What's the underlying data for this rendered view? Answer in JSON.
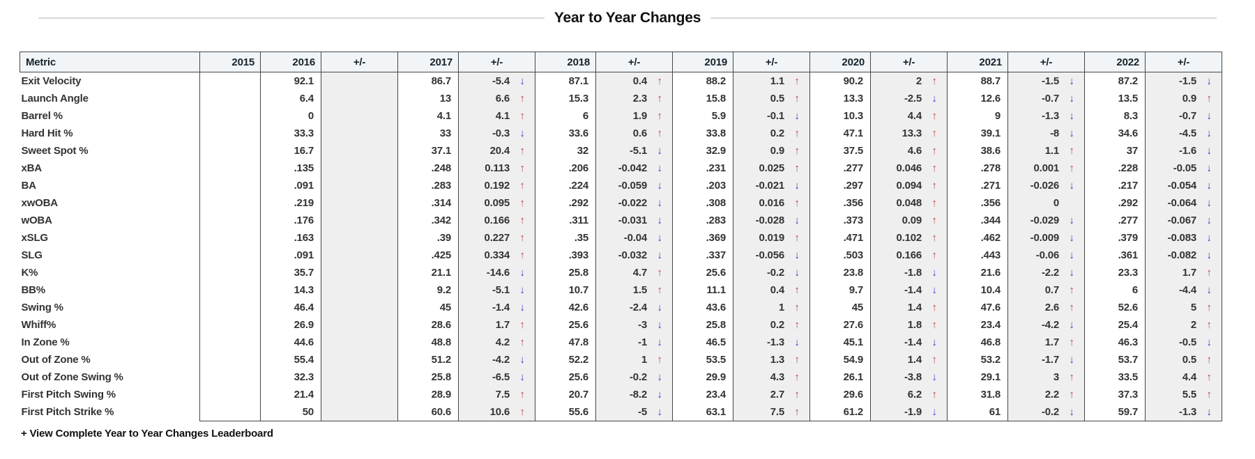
{
  "title": "Year to Year Changes",
  "footer": {
    "link_label": "+ View Complete Year to Year Changes Leaderboard"
  },
  "icons": {
    "up_arrow": "↑",
    "down_arrow": "↓"
  },
  "colors": {
    "up_arrow": "#bb4444",
    "down_arrow": "#3a3acd",
    "pm_column_bg": "#efefef",
    "header_bg": "#f2f5f8",
    "border": "#454545"
  },
  "table": {
    "metric_header": "Metric",
    "pm_header": "+/-",
    "years": [
      "2015",
      "2016",
      "2017",
      "2018",
      "2019",
      "2020",
      "2021",
      "2022"
    ],
    "rows": [
      {
        "metric": "Exit Velocity",
        "values": [
          "",
          "92.1",
          "86.7",
          "87.1",
          "88.2",
          "90.2",
          "88.7",
          "87.2"
        ],
        "changes": [
          "",
          "-5.4",
          "0.4",
          "1.1",
          "2",
          "-1.5",
          "-1.5"
        ]
      },
      {
        "metric": "Launch Angle",
        "values": [
          "",
          "6.4",
          "13",
          "15.3",
          "15.8",
          "13.3",
          "12.6",
          "13.5"
        ],
        "changes": [
          "",
          "6.6",
          "2.3",
          "0.5",
          "-2.5",
          "-0.7",
          "0.9"
        ]
      },
      {
        "metric": "Barrel %",
        "values": [
          "",
          "0",
          "4.1",
          "6",
          "5.9",
          "10.3",
          "9",
          "8.3"
        ],
        "changes": [
          "",
          "4.1",
          "1.9",
          "-0.1",
          "4.4",
          "-1.3",
          "-0.7"
        ]
      },
      {
        "metric": "Hard Hit %",
        "values": [
          "",
          "33.3",
          "33",
          "33.6",
          "33.8",
          "47.1",
          "39.1",
          "34.6"
        ],
        "changes": [
          "",
          "-0.3",
          "0.6",
          "0.2",
          "13.3",
          "-8",
          "-4.5"
        ]
      },
      {
        "metric": "Sweet Spot %",
        "values": [
          "",
          "16.7",
          "37.1",
          "32",
          "32.9",
          "37.5",
          "38.6",
          "37"
        ],
        "changes": [
          "",
          "20.4",
          "-5.1",
          "0.9",
          "4.6",
          "1.1",
          "-1.6"
        ]
      },
      {
        "metric": "xBA",
        "values": [
          "",
          ".135",
          ".248",
          ".206",
          ".231",
          ".277",
          ".278",
          ".228"
        ],
        "changes": [
          "",
          "0.113",
          "-0.042",
          "0.025",
          "0.046",
          "0.001",
          "-0.05"
        ]
      },
      {
        "metric": "BA",
        "values": [
          "",
          ".091",
          ".283",
          ".224",
          ".203",
          ".297",
          ".271",
          ".217"
        ],
        "changes": [
          "",
          "0.192",
          "-0.059",
          "-0.021",
          "0.094",
          "-0.026",
          "-0.054"
        ]
      },
      {
        "metric": "xwOBA",
        "values": [
          "",
          ".219",
          ".314",
          ".292",
          ".308",
          ".356",
          ".356",
          ".292"
        ],
        "changes": [
          "",
          "0.095",
          "-0.022",
          "0.016",
          "0.048",
          "0",
          "-0.064"
        ]
      },
      {
        "metric": "wOBA",
        "values": [
          "",
          ".176",
          ".342",
          ".311",
          ".283",
          ".373",
          ".344",
          ".277"
        ],
        "changes": [
          "",
          "0.166",
          "-0.031",
          "-0.028",
          "0.09",
          "-0.029",
          "-0.067"
        ]
      },
      {
        "metric": "xSLG",
        "values": [
          "",
          ".163",
          ".39",
          ".35",
          ".369",
          ".471",
          ".462",
          ".379"
        ],
        "changes": [
          "",
          "0.227",
          "-0.04",
          "0.019",
          "0.102",
          "-0.009",
          "-0.083"
        ]
      },
      {
        "metric": "SLG",
        "values": [
          "",
          ".091",
          ".425",
          ".393",
          ".337",
          ".503",
          ".443",
          ".361"
        ],
        "changes": [
          "",
          "0.334",
          "-0.032",
          "-0.056",
          "0.166",
          "-0.06",
          "-0.082"
        ]
      },
      {
        "metric": "K%",
        "values": [
          "",
          "35.7",
          "21.1",
          "25.8",
          "25.6",
          "23.8",
          "21.6",
          "23.3"
        ],
        "changes": [
          "",
          "-14.6",
          "4.7",
          "-0.2",
          "-1.8",
          "-2.2",
          "1.7"
        ]
      },
      {
        "metric": "BB%",
        "values": [
          "",
          "14.3",
          "9.2",
          "10.7",
          "11.1",
          "9.7",
          "10.4",
          "6"
        ],
        "changes": [
          "",
          "-5.1",
          "1.5",
          "0.4",
          "-1.4",
          "0.7",
          "-4.4"
        ]
      },
      {
        "metric": "Swing %",
        "values": [
          "",
          "46.4",
          "45",
          "42.6",
          "43.6",
          "45",
          "47.6",
          "52.6"
        ],
        "changes": [
          "",
          "-1.4",
          "-2.4",
          "1",
          "1.4",
          "2.6",
          "5"
        ]
      },
      {
        "metric": "Whiff%",
        "values": [
          "",
          "26.9",
          "28.6",
          "25.6",
          "25.8",
          "27.6",
          "23.4",
          "25.4"
        ],
        "changes": [
          "",
          "1.7",
          "-3",
          "0.2",
          "1.8",
          "-4.2",
          "2"
        ]
      },
      {
        "metric": "In Zone %",
        "values": [
          "",
          "44.6",
          "48.8",
          "47.8",
          "46.5",
          "45.1",
          "46.8",
          "46.3"
        ],
        "changes": [
          "",
          "4.2",
          "-1",
          "-1.3",
          "-1.4",
          "1.7",
          "-0.5"
        ]
      },
      {
        "metric": "Out of Zone %",
        "values": [
          "",
          "55.4",
          "51.2",
          "52.2",
          "53.5",
          "54.9",
          "53.2",
          "53.7"
        ],
        "changes": [
          "",
          "-4.2",
          "1",
          "1.3",
          "1.4",
          "-1.7",
          "0.5"
        ]
      },
      {
        "metric": "Out of Zone Swing %",
        "values": [
          "",
          "32.3",
          "25.8",
          "25.6",
          "29.9",
          "26.1",
          "29.1",
          "33.5"
        ],
        "changes": [
          "",
          "-6.5",
          "-0.2",
          "4.3",
          "-3.8",
          "3",
          "4.4"
        ]
      },
      {
        "metric": "First Pitch Swing %",
        "values": [
          "",
          "21.4",
          "28.9",
          "20.7",
          "23.4",
          "29.6",
          "31.8",
          "37.3"
        ],
        "changes": [
          "",
          "7.5",
          "-8.2",
          "2.7",
          "6.2",
          "2.2",
          "5.5"
        ]
      },
      {
        "metric": "First Pitch Strike %",
        "values": [
          "",
          "50",
          "60.6",
          "55.6",
          "63.1",
          "61.2",
          "61",
          "59.7"
        ],
        "changes": [
          "",
          "10.6",
          "-5",
          "7.5",
          "-1.9",
          "-0.2",
          "-1.3"
        ]
      }
    ]
  }
}
